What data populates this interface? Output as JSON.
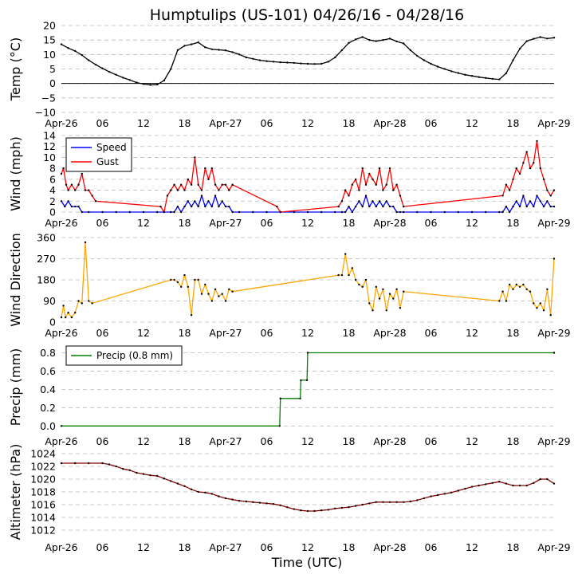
{
  "title": "Humptulips (US-101) 04/26/16 - 04/28/16",
  "xlabel": "Time (UTC)",
  "x_ticks": [
    "Apr-26",
    "06",
    "12",
    "18",
    "Apr-27",
    "06",
    "12",
    "18",
    "Apr-28",
    "06",
    "12",
    "18",
    "Apr-29"
  ],
  "x_range_hours": [
    0,
    72
  ],
  "colors": {
    "temp": "#000000",
    "speed": "#0000ff",
    "gust": "#ff0000",
    "direction": "#ffa500",
    "precip": "#008000",
    "altimeter": "#8b0000",
    "grid": "#bbbbbb"
  },
  "chart_data": [
    {
      "id": "temp",
      "type": "line",
      "ylabel": "Temp (°C)",
      "ylim": [
        -10,
        20
      ],
      "yticks": [
        "20",
        "15",
        "10",
        "5",
        "0",
        "−5",
        "−10"
      ],
      "ytick_values": [
        20,
        15,
        10,
        5,
        0,
        -5,
        -10
      ],
      "zero_line": true,
      "series": [
        {
          "name": "Temp",
          "x": [
            0,
            1,
            2,
            3,
            4,
            5,
            6,
            7,
            8,
            9,
            10,
            11,
            12,
            13,
            14,
            15,
            16,
            17,
            18,
            19,
            20,
            21,
            22,
            23,
            24,
            25,
            26,
            27,
            28,
            29,
            30,
            31,
            32,
            33,
            34,
            35,
            36,
            37,
            38,
            39,
            40,
            41,
            42,
            43,
            44,
            45,
            46,
            47,
            48,
            49,
            50,
            51,
            52,
            53,
            54,
            55,
            56,
            57,
            58,
            59,
            60,
            61,
            62,
            63,
            64,
            65,
            66,
            67,
            68,
            69,
            70,
            71,
            72
          ],
          "values": [
            13.5,
            12.2,
            11.2,
            9.8,
            8,
            6.5,
            5.2,
            4,
            3,
            2,
            1.2,
            0.3,
            -0.2,
            -0.5,
            -0.4,
            1,
            5,
            11.5,
            13,
            13.5,
            14.2,
            12.5,
            11.8,
            11.6,
            11.4,
            10.8,
            10,
            9,
            8.5,
            8,
            7.7,
            7.5,
            7.3,
            7.2,
            7.1,
            6.9,
            6.8,
            6.7,
            6.8,
            7.5,
            9,
            11.5,
            14,
            15.2,
            16,
            15,
            14.6,
            15,
            15.5,
            14.5,
            13.8,
            11.5,
            9.5,
            8,
            6.8,
            5.8,
            5,
            4.2,
            3.6,
            3,
            2.6,
            2.2,
            1.9,
            1.6,
            1.4,
            3.5,
            8,
            12,
            14.6,
            15.4,
            16,
            15.5,
            15.8
          ]
        }
      ]
    },
    {
      "id": "wind",
      "type": "line",
      "ylabel": "Wind (mph)",
      "ylim": [
        0,
        14
      ],
      "yticks": [
        "14",
        "12",
        "10",
        "8",
        "6",
        "4",
        "2",
        "0"
      ],
      "ytick_values": [
        14,
        12,
        10,
        8,
        6,
        4,
        2,
        0
      ],
      "legend": [
        "Speed",
        "Gust"
      ],
      "series": [
        {
          "name": "Speed",
          "x": [
            0,
            0.5,
            1,
            1.5,
            2,
            2.5,
            3,
            4,
            6,
            8,
            10,
            12,
            14,
            15,
            16,
            16.5,
            17,
            17.5,
            18,
            18.5,
            19,
            19.5,
            20,
            20.5,
            21,
            21.5,
            22,
            22.5,
            23,
            23.5,
            24,
            24.5,
            25,
            26,
            28,
            30,
            32,
            34,
            36,
            38,
            40,
            41,
            41.5,
            42,
            42.5,
            43,
            43.5,
            44,
            44.5,
            45,
            45.5,
            46,
            46.5,
            47,
            47.5,
            48,
            48.5,
            49,
            49.5,
            50,
            52,
            54,
            56,
            58,
            60,
            62,
            64,
            64.5,
            65,
            65.5,
            66,
            66.5,
            67,
            67.5,
            68,
            68.5,
            69,
            69.5,
            70,
            70.5,
            71,
            71.5,
            72
          ],
          "values": [
            2,
            1,
            2,
            1,
            1,
            1,
            0,
            0,
            0,
            0,
            0,
            0,
            0,
            0,
            0,
            0,
            1,
            0,
            1,
            2,
            1,
            2,
            1,
            3,
            1,
            2,
            1,
            3,
            1,
            2,
            1,
            1,
            0,
            0,
            0,
            0,
            0,
            0,
            0,
            0,
            0,
            0,
            0,
            1,
            0,
            1,
            2,
            1,
            3,
            1,
            2,
            1,
            2,
            1,
            2,
            1,
            1,
            0,
            0,
            0,
            0,
            0,
            0,
            0,
            0,
            0,
            0,
            0,
            1,
            0,
            1,
            2,
            1,
            3,
            1,
            2,
            1,
            3,
            2,
            1,
            2,
            1,
            1
          ]
        },
        {
          "name": "Gust",
          "x": [
            0,
            0.3,
            0.7,
            1,
            1.5,
            2,
            2.5,
            3,
            3.5,
            4,
            4.5,
            5,
            14.5,
            15,
            15.5,
            16,
            16.5,
            17,
            17.5,
            18,
            18.5,
            19,
            19.5,
            20,
            20.5,
            21,
            21.5,
            22,
            22.5,
            23,
            23.5,
            24,
            24.5,
            25,
            31.5,
            32,
            40.5,
            41,
            41.5,
            42,
            42.5,
            43,
            43.5,
            44,
            44.5,
            45,
            45.5,
            46,
            46.5,
            47,
            47.5,
            48,
            48.5,
            49,
            49.5,
            50,
            64.5,
            65,
            65.5,
            66,
            66.5,
            67,
            67.5,
            68,
            68.5,
            69,
            69.5,
            70,
            70.5,
            71,
            71.5,
            72
          ],
          "values": [
            7,
            8,
            5,
            4,
            5,
            4,
            5,
            7,
            4,
            4,
            3,
            2,
            1,
            0,
            3,
            4,
            5,
            4,
            5,
            4,
            6,
            5,
            10,
            5,
            4,
            8,
            6,
            8,
            5,
            4,
            5,
            5,
            4,
            5,
            1,
            0,
            1,
            2,
            4,
            3,
            5,
            6,
            4,
            8,
            5,
            7,
            6,
            5,
            8,
            4,
            5,
            8,
            4,
            5,
            3,
            1,
            3,
            5,
            4,
            6,
            8,
            7,
            9,
            11,
            8,
            9,
            13,
            8,
            6,
            4,
            3,
            4
          ]
        }
      ]
    },
    {
      "id": "direction",
      "type": "line",
      "ylabel": "Wind Direction",
      "ylim": [
        0,
        360
      ],
      "yticks": [
        "360",
        "270",
        "180",
        "90",
        "0"
      ],
      "ytick_values": [
        360,
        270,
        180,
        90,
        0
      ],
      "series": [
        {
          "name": "Direction",
          "x": [
            0,
            0.3,
            0.6,
            1,
            1.5,
            2,
            2.5,
            3,
            3.5,
            4,
            4.5,
            16,
            16.5,
            17,
            17.5,
            18,
            18.5,
            19,
            19.5,
            20,
            20.5,
            21,
            21.5,
            22,
            22.5,
            23,
            23.5,
            24,
            24.5,
            25,
            40.5,
            41,
            41.5,
            42,
            42.5,
            43,
            43.5,
            44,
            44.5,
            45,
            45.5,
            46,
            46.5,
            47,
            47.5,
            48,
            48.5,
            49,
            49.5,
            50,
            64,
            64.5,
            65,
            65.5,
            66,
            66.5,
            67,
            67.5,
            68,
            68.5,
            69,
            69.5,
            70,
            70.5,
            71,
            71.5,
            72
          ],
          "values": [
            20,
            70,
            20,
            40,
            20,
            40,
            90,
            80,
            340,
            90,
            80,
            180,
            180,
            170,
            150,
            200,
            150,
            30,
            180,
            180,
            120,
            160,
            120,
            90,
            140,
            110,
            120,
            90,
            140,
            130,
            200,
            200,
            290,
            200,
            230,
            180,
            160,
            150,
            180,
            80,
            50,
            150,
            100,
            140,
            50,
            120,
            100,
            140,
            60,
            130,
            90,
            130,
            90,
            160,
            140,
            160,
            150,
            160,
            140,
            130,
            80,
            60,
            80,
            50,
            140,
            30,
            270
          ]
        }
      ]
    },
    {
      "id": "precip",
      "type": "line",
      "ylabel": "Precip (mm)",
      "ylim": [
        -0.05,
        0.9
      ],
      "yticks": [
        "0.8",
        "0.6",
        "0.4",
        "0.2",
        "0.0"
      ],
      "ytick_values": [
        0.8,
        0.6,
        0.4,
        0.2,
        0.0
      ],
      "legend": [
        "Precip (0.8 mm)"
      ],
      "series": [
        {
          "name": "Precip (0.8 mm)",
          "x": [
            0,
            31.9,
            32,
            34.9,
            35,
            35.9,
            36,
            72
          ],
          "values": [
            0,
            0,
            0.3,
            0.3,
            0.5,
            0.5,
            0.8,
            0.8
          ]
        }
      ]
    },
    {
      "id": "altimeter",
      "type": "line",
      "ylabel": "Altimeter (hPa)",
      "ylim": [
        1011,
        1025
      ],
      "yticks": [
        "1024",
        "1022",
        "1020",
        "1018",
        "1016",
        "1014",
        "1012"
      ],
      "ytick_values": [
        1024,
        1022,
        1020,
        1018,
        1016,
        1014,
        1012
      ],
      "series": [
        {
          "name": "Altimeter",
          "x": [
            0,
            2,
            4,
            6,
            7,
            8,
            9,
            10,
            11,
            12,
            13,
            14,
            15,
            16,
            17,
            18,
            19,
            20,
            21,
            22,
            23,
            24,
            25,
            26,
            27,
            28,
            29,
            30,
            31,
            32,
            33,
            34,
            35,
            36,
            37,
            38,
            39,
            40,
            41,
            42,
            43,
            44,
            45,
            46,
            47,
            48,
            49,
            50,
            51,
            52,
            53,
            54,
            55,
            56,
            57,
            58,
            59,
            60,
            61,
            62,
            63,
            64,
            65,
            66,
            67,
            68,
            69,
            70,
            71,
            72
          ],
          "values": [
            1022.5,
            1022.5,
            1022.5,
            1022.5,
            1022.3,
            1022,
            1021.6,
            1021.4,
            1021,
            1020.8,
            1020.6,
            1020.5,
            1020.1,
            1019.7,
            1019.3,
            1018.9,
            1018.4,
            1018,
            1017.9,
            1017.7,
            1017.3,
            1017,
            1016.8,
            1016.6,
            1016.5,
            1016.4,
            1016.3,
            1016.2,
            1016.1,
            1015.9,
            1015.6,
            1015.3,
            1015.1,
            1015,
            1015,
            1015.1,
            1015.2,
            1015.4,
            1015.5,
            1015.6,
            1015.8,
            1016,
            1016.2,
            1016.4,
            1016.4,
            1016.4,
            1016.4,
            1016.4,
            1016.5,
            1016.7,
            1017,
            1017.3,
            1017.5,
            1017.7,
            1017.9,
            1018.2,
            1018.5,
            1018.8,
            1019,
            1019.2,
            1019.4,
            1019.6,
            1019.3,
            1019,
            1019,
            1019,
            1019.4,
            1020,
            1020,
            1019.3
          ]
        }
      ]
    }
  ]
}
